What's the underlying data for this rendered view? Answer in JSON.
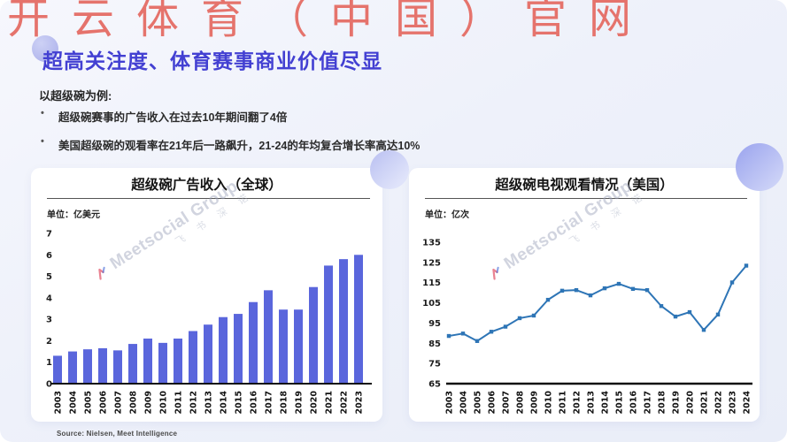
{
  "top_watermark": {
    "text": "开云体育（中国）官网",
    "color": "#e5736c"
  },
  "header": {
    "title": "超高关注度、体育赛事商业价值尽显",
    "subtitle": "以超级碗为例:",
    "bullets": [
      "超级碗赛事的广告收入在过去10年期间翻了4倍",
      "美国超级碗的观看率在21年后一路飙升，21-24的年均复合增长率高达10%"
    ]
  },
  "brand_watermark": {
    "name": "Meetsocial Group",
    "cn": "飞 书 深 诺"
  },
  "footer": {
    "source": "Source: Nielsen,  Meet Intelligence"
  },
  "colors": {
    "title_accent": "#4340d2",
    "bar": "#5a66dc",
    "line": "#2e75b6",
    "background": "#edf0fa",
    "card": "#ffffff",
    "watermark_red": "#e5736c"
  },
  "chart_data": [
    {
      "type": "bar",
      "title": "超级碗广告收入（全球）",
      "unit_label": "单位：亿美元",
      "categories": [
        "2003",
        "2004",
        "2005",
        "2006",
        "2007",
        "2008",
        "2009",
        "2010",
        "2011",
        "2012",
        "2013",
        "2014",
        "2015",
        "2016",
        "2017",
        "2018",
        "2019",
        "2020",
        "2021",
        "2022",
        "2023"
      ],
      "values": [
        1.3,
        1.5,
        1.6,
        1.65,
        1.55,
        1.85,
        2.1,
        1.9,
        2.1,
        2.45,
        2.75,
        3.1,
        3.25,
        3.8,
        4.35,
        3.45,
        3.45,
        4.5,
        5.5,
        5.8,
        6.0
      ],
      "ylim": [
        0,
        7
      ],
      "yticks": [
        0,
        1,
        2,
        3,
        4,
        5,
        6,
        7
      ],
      "bar_color": "#5a66dc",
      "grid": false,
      "legend": "none"
    },
    {
      "type": "line",
      "title": "超级碗电视观看情况（美国）",
      "unit_label": "单位：亿次",
      "categories": [
        "2003",
        "2004",
        "2005",
        "2006",
        "2007",
        "2008",
        "2009",
        "2010",
        "2011",
        "2012",
        "2013",
        "2014",
        "2015",
        "2016",
        "2017",
        "2018",
        "2019",
        "2020",
        "2021",
        "2022",
        "2023",
        "2024"
      ],
      "values": [
        88.6,
        89.8,
        86.1,
        90.7,
        93.2,
        97.4,
        98.7,
        106.5,
        111.0,
        111.3,
        108.7,
        112.2,
        114.4,
        111.9,
        111.3,
        103.4,
        98.2,
        100.4,
        91.6,
        99.2,
        115.1,
        123.4
      ],
      "ylim": [
        65,
        135
      ],
      "yticks": [
        65,
        75,
        85,
        95,
        105,
        115,
        125,
        135
      ],
      "line_color": "#2e75b6",
      "grid": false,
      "legend": "none"
    }
  ]
}
